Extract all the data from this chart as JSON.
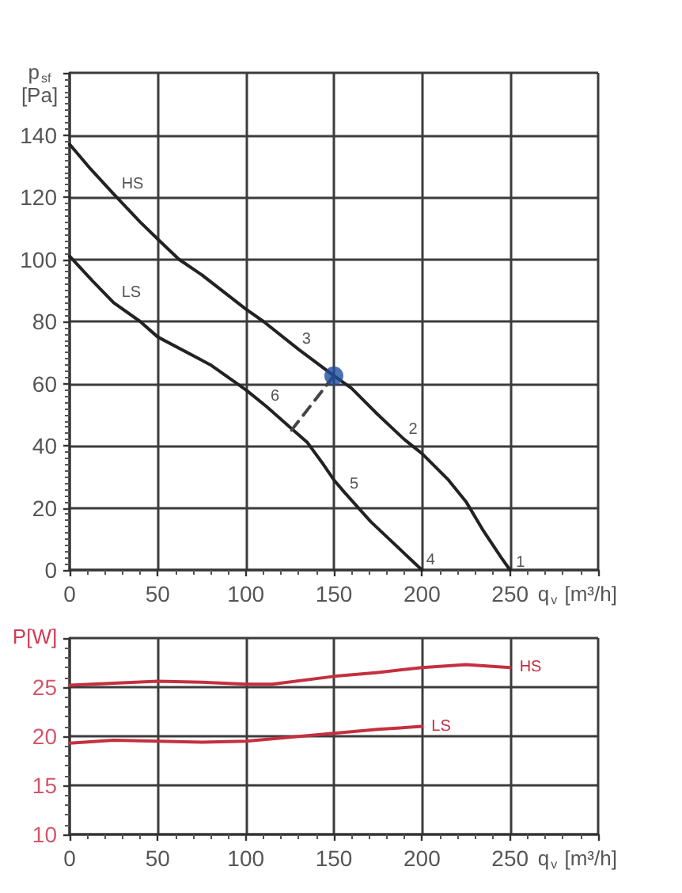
{
  "chart_data": [
    {
      "type": "line",
      "ylabel": "p$_{sf}$ [Pa]",
      "xlabel": "q$_{v}$ [m³/h]",
      "xlim": [
        0,
        300
      ],
      "xticks": [
        0,
        50,
        100,
        150,
        200,
        250,
        {
          "value": 300,
          "label": null
        }
      ],
      "ylim": [
        0,
        160
      ],
      "yticks": [
        0,
        20,
        40,
        60,
        80,
        100,
        120,
        140,
        {
          "value": 160,
          "label": null
        }
      ],
      "grid": true,
      "marker": "none",
      "series": [
        {
          "name": "HS",
          "color": "#222222",
          "x": [
            0,
            12,
            25,
            40,
            50,
            62,
            75,
            100,
            110,
            130,
            150,
            160,
            175,
            190,
            200,
            215,
            225,
            235,
            245,
            250
          ],
          "values": [
            137,
            129,
            121,
            112,
            106.5,
            100,
            95,
            84,
            80,
            71,
            62.5,
            58.5,
            50,
            42,
            37.5,
            29,
            22,
            12.5,
            4,
            0
          ]
        },
        {
          "name": "LS",
          "color": "#222222",
          "x": [
            0,
            13,
            25,
            40,
            50,
            80,
            100,
            112,
            125,
            135,
            144,
            150,
            156,
            171,
            200
          ],
          "values": [
            101,
            93,
            86,
            80,
            75,
            66,
            58,
            52.5,
            46,
            41,
            34,
            29,
            25,
            15.5,
            0
          ]
        },
        {
          "type": "line",
          "color": "#444444",
          "line_style": "dashed",
          "x": [
            126,
            150
          ],
          "values": [
            45,
            62.5
          ]
        },
        {
          "type": "scatter",
          "color": "#1f4e9e",
          "marker": "circle",
          "x": [
            150
          ],
          "values": [
            62.5
          ]
        }
      ],
      "annotations": [
        {
          "text": "1",
          "x": 250,
          "y": 0
        },
        {
          "text": "2",
          "x": 190,
          "y": 42
        },
        {
          "text": "3",
          "x": 130,
          "y": 71
        },
        {
          "text": "4",
          "x": 200,
          "y": 0
        },
        {
          "text": "5",
          "x": 156,
          "y": 25
        },
        {
          "text": "6",
          "x": 112,
          "y": 52.5
        }
      ]
    },
    {
      "type": "line",
      "ylabel": "P[W]",
      "xlabel": "q$_{v}$ [m³/h]",
      "xlim": [
        0,
        300
      ],
      "xticks": [
        0,
        50,
        100,
        150,
        200,
        250,
        {
          "value": 300,
          "label": null
        }
      ],
      "ylim": [
        10,
        30
      ],
      "yticks": [
        10,
        15,
        20,
        25,
        {
          "value": 30,
          "label": null
        }
      ],
      "grid": true,
      "marker": "none",
      "series": [
        {
          "name": "HS",
          "color": "#c4303f",
          "x": [
            0,
            25,
            50,
            75,
            100,
            115,
            150,
            175,
            200,
            225,
            250
          ],
          "values": [
            25.2,
            25.4,
            25.6,
            25.5,
            25.3,
            25.3,
            26.1,
            26.5,
            27.0,
            27.3,
            27.0
          ]
        },
        {
          "name": "LS",
          "color": "#c4303f",
          "x": [
            0,
            25,
            50,
            75,
            100,
            125,
            150,
            175,
            200
          ],
          "values": [
            19.3,
            19.6,
            19.5,
            19.4,
            19.5,
            19.9,
            20.3,
            20.7,
            21.0
          ]
        }
      ]
    }
  ]
}
